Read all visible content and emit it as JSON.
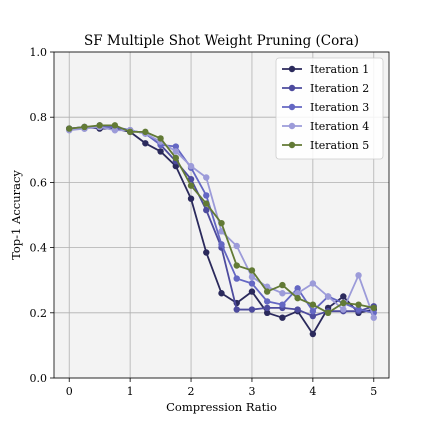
{
  "chart_data": {
    "type": "line",
    "title": "SF Multiple Shot Weight Pruning (Cora)",
    "xlabel": "Compression Ratio",
    "ylabel": "Top-1 Accuracy",
    "xlim": [
      -0.25,
      5.25
    ],
    "ylim": [
      0.0,
      1.0
    ],
    "xticks": [
      0,
      1,
      2,
      3,
      4,
      5
    ],
    "yticks": [
      0.0,
      0.2,
      0.4,
      0.6,
      0.8,
      1.0
    ],
    "grid": true,
    "legend_position": "top-right",
    "x": [
      0.0,
      0.25,
      0.5,
      0.75,
      1.0,
      1.25,
      1.5,
      1.75,
      2.0,
      2.25,
      2.5,
      2.75,
      3.0,
      3.25,
      3.5,
      3.75,
      4.0,
      4.25,
      4.5,
      4.75,
      5.0
    ],
    "series": [
      {
        "name": "Iteration 1",
        "color": "#2b2a5c",
        "values": [
          0.765,
          0.77,
          0.765,
          0.765,
          0.755,
          0.72,
          0.695,
          0.65,
          0.55,
          0.385,
          0.26,
          0.23,
          0.265,
          0.2,
          0.185,
          0.205,
          0.135,
          0.215,
          0.25,
          0.2,
          0.21
        ]
      },
      {
        "name": "Iteration 2",
        "color": "#4d4b9e",
        "values": [
          0.765,
          0.765,
          0.775,
          0.77,
          0.76,
          0.75,
          0.715,
          0.665,
          0.61,
          0.515,
          0.4,
          0.21,
          0.21,
          0.215,
          0.215,
          0.21,
          0.19,
          0.205,
          0.205,
          0.205,
          0.22
        ]
      },
      {
        "name": "Iteration 3",
        "color": "#6467c3",
        "values": [
          0.765,
          0.77,
          0.77,
          0.77,
          0.76,
          0.75,
          0.715,
          0.71,
          0.645,
          0.56,
          0.41,
          0.305,
          0.29,
          0.235,
          0.225,
          0.275,
          0.205,
          0.25,
          0.23,
          0.21,
          0.2
        ]
      },
      {
        "name": "Iteration 4",
        "color": "#9c9bd9",
        "values": [
          0.76,
          0.765,
          0.77,
          0.76,
          0.76,
          0.75,
          0.725,
          0.695,
          0.65,
          0.615,
          0.45,
          0.405,
          0.31,
          0.28,
          0.26,
          0.26,
          0.29,
          0.25,
          0.21,
          0.315,
          0.185
        ]
      },
      {
        "name": "Iteration 5",
        "color": "#627a35",
        "values": [
          0.765,
          0.77,
          0.775,
          0.775,
          0.755,
          0.755,
          0.735,
          0.675,
          0.59,
          0.535,
          0.475,
          0.345,
          0.33,
          0.265,
          0.285,
          0.245,
          0.225,
          0.2,
          0.23,
          0.225,
          0.215
        ]
      }
    ]
  }
}
